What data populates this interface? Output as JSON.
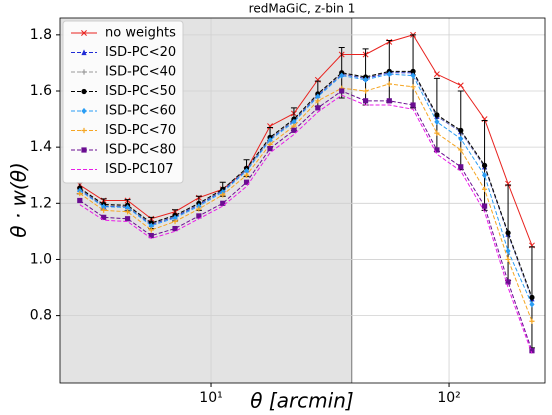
{
  "chart_data": {
    "type": "line",
    "title": "redMaGiC, z-bin 1",
    "xlabel": "θ [arcmin]",
    "ylabel": "θ · w(θ)",
    "log_x": true,
    "grid": true,
    "legend": "upper left",
    "xlim": [
      2.32,
      253
    ],
    "ylim": [
      0.56,
      1.86
    ],
    "xticks": [
      {
        "value": 10,
        "label": "10¹"
      },
      {
        "value": 100,
        "label": "10²"
      }
    ],
    "yticks": [
      0.8,
      {
        "value": 1,
        "label": "1.0"
      },
      1.2,
      1.4,
      1.6,
      1.8
    ],
    "shaded_xrange": [
      2.32,
      39
    ],
    "x": [
      2.81,
      3.54,
      4.46,
      5.61,
      7.06,
      8.89,
      11.2,
      14.1,
      17.7,
      22.3,
      28.1,
      35.4,
      44.6,
      56.1,
      70.6,
      88.9,
      112,
      141,
      177,
      223
    ],
    "series": [
      {
        "name": "no weights",
        "color": "#e8231f",
        "marker": "x",
        "dashed": false,
        "values": [
          1.265,
          1.21,
          1.21,
          1.145,
          1.17,
          1.22,
          1.25,
          1.32,
          1.475,
          1.52,
          1.64,
          1.73,
          1.73,
          1.775,
          1.8,
          1.66,
          1.62,
          1.5,
          1.27,
          1.05
        ]
      },
      {
        "name": "ISD-PC<20",
        "color": "#1f2bd6",
        "marker": "triangle",
        "dashed": true,
        "values": [
          1.25,
          1.19,
          1.188,
          1.125,
          1.152,
          1.195,
          1.245,
          1.32,
          1.43,
          1.495,
          1.585,
          1.66,
          1.645,
          1.665,
          1.665,
          1.51,
          1.455,
          1.33,
          1.09,
          0.86
        ]
      },
      {
        "name": "ISD-PC<40",
        "color": "#999999",
        "marker": "plus",
        "dashed": true,
        "values": [
          1.252,
          1.193,
          1.19,
          1.128,
          1.155,
          1.198,
          1.248,
          1.322,
          1.432,
          1.497,
          1.588,
          1.662,
          1.648,
          1.668,
          1.668,
          1.512,
          1.457,
          1.332,
          1.092,
          0.862
        ]
      },
      {
        "name": "ISD-PC<50",
        "color": "#000000",
        "marker": "circle",
        "dashed": true,
        "values": [
          1.254,
          1.196,
          1.193,
          1.13,
          1.157,
          1.2,
          1.25,
          1.325,
          1.435,
          1.5,
          1.59,
          1.665,
          1.65,
          1.67,
          1.67,
          1.515,
          1.46,
          1.335,
          1.095,
          0.865
        ],
        "errors": [
          0.02,
          0.02,
          0.02,
          0.02,
          0.02,
          0.025,
          0.025,
          0.03,
          0.035,
          0.04,
          0.045,
          0.09,
          0.1,
          0.11,
          0.13,
          0.13,
          0.14,
          0.16,
          0.17,
          0.18
        ]
      },
      {
        "name": "ISD-PC<60",
        "color": "#2a9df4",
        "marker": "diamond",
        "dashed": true,
        "values": [
          1.245,
          1.188,
          1.185,
          1.12,
          1.148,
          1.19,
          1.24,
          1.315,
          1.425,
          1.49,
          1.58,
          1.655,
          1.64,
          1.66,
          1.655,
          1.49,
          1.43,
          1.3,
          1.03,
          0.84
        ]
      },
      {
        "name": "ISD-PC<70",
        "color": "#f5a623",
        "marker": "plus",
        "dashed": true,
        "values": [
          1.235,
          1.175,
          1.17,
          1.105,
          1.135,
          1.18,
          1.23,
          1.3,
          1.41,
          1.475,
          1.565,
          1.61,
          1.6,
          1.625,
          1.615,
          1.45,
          1.39,
          1.25,
          1,
          0.78
        ]
      },
      {
        "name": "ISD-PC<80",
        "color": "#6a0d91",
        "marker": "square",
        "dashed": true,
        "values": [
          1.21,
          1.15,
          1.145,
          1.085,
          1.11,
          1.155,
          1.2,
          1.275,
          1.395,
          1.46,
          1.54,
          1.6,
          1.565,
          1.565,
          1.55,
          1.39,
          1.33,
          1.19,
          0.92,
          0.675
        ]
      },
      {
        "name": "ISD-PC107",
        "color": "#e81ce8",
        "marker": "none",
        "dashed": true,
        "values": [
          1.195,
          1.14,
          1.135,
          1.075,
          1.1,
          1.145,
          1.19,
          1.26,
          1.38,
          1.445,
          1.525,
          1.585,
          1.55,
          1.55,
          1.535,
          1.375,
          1.315,
          1.17,
          0.9,
          0.665
        ]
      }
    ]
  }
}
